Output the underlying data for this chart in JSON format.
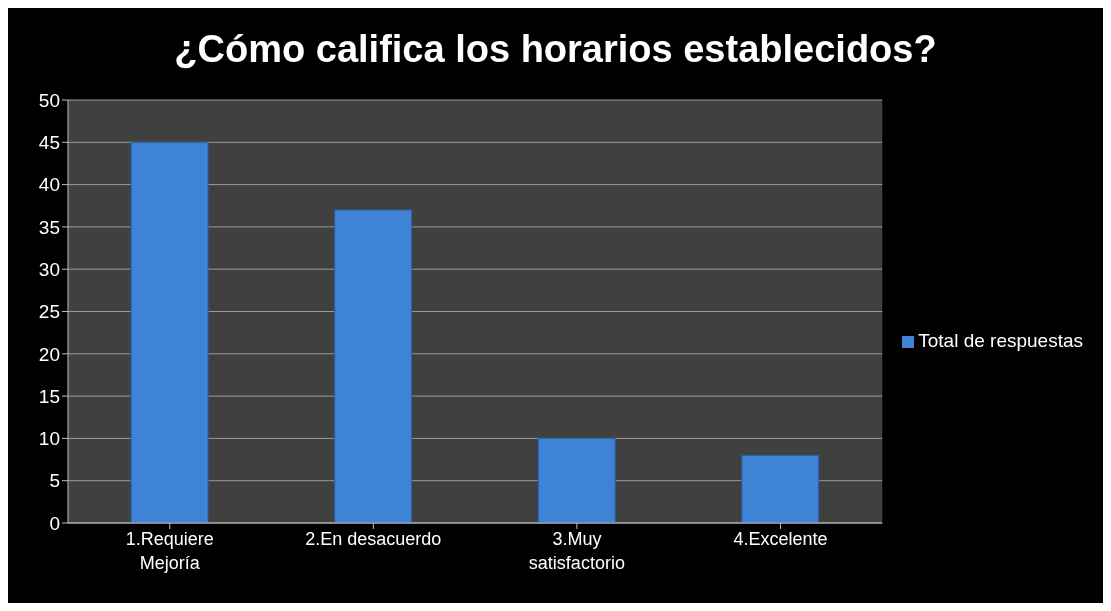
{
  "chart_data": {
    "type": "bar",
    "title": "¿Cómo califica los horarios establecidos?",
    "categories": [
      "1.Requiere Mejoría",
      "2.En desacuerdo",
      "3.Muy satisfactorio",
      "4.Excelente"
    ],
    "series": [
      {
        "name": "Total de respuestas",
        "color": "#3f83d6",
        "values": [
          45,
          37,
          10,
          8
        ]
      }
    ],
    "ylim": [
      0,
      50
    ],
    "yticks": [
      0,
      5,
      10,
      15,
      20,
      25,
      30,
      35,
      40,
      45,
      50
    ],
    "grid": "y",
    "legend": "right"
  }
}
